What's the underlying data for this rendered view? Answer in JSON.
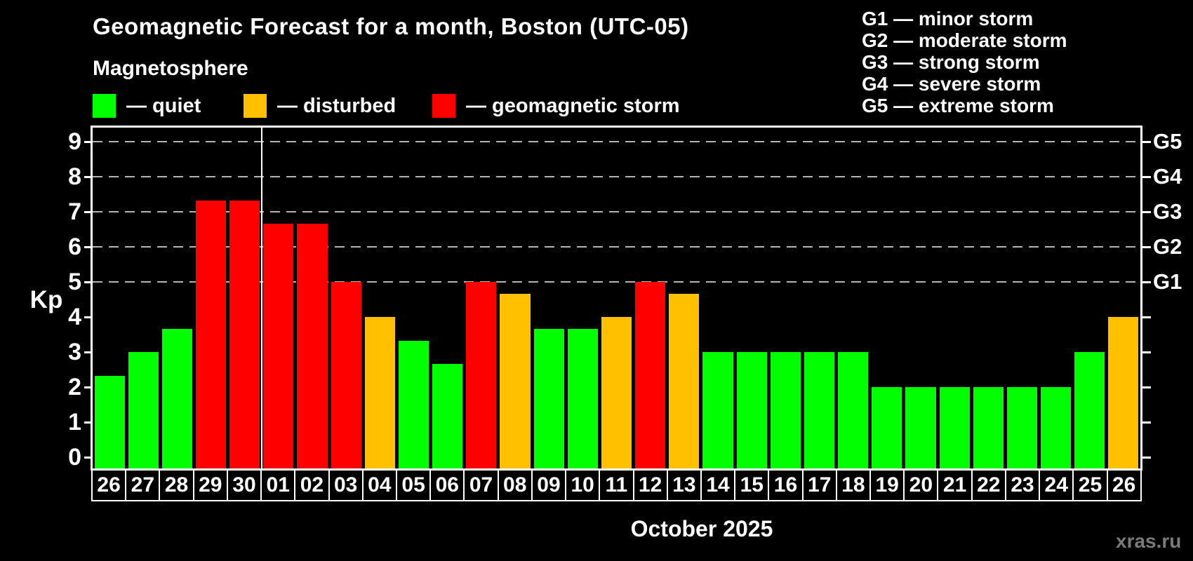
{
  "title": "Geomagnetic Forecast for a month, Boston (UTC-05)",
  "subtitle": "Magnetosphere",
  "legend": {
    "items": [
      {
        "id": "quiet",
        "label": "— quiet",
        "color": "#00ff00"
      },
      {
        "id": "disturbed",
        "label": "— disturbed",
        "color": "#ffc000"
      },
      {
        "id": "storm",
        "label": "— geomagnetic storm",
        "color": "#ff0000"
      }
    ]
  },
  "storm_scale_legend": {
    "items": [
      "G1 — minor storm",
      "G2 — moderate storm",
      "G3 — strong storm",
      "G4 — severe storm",
      "G5 — extreme storm"
    ]
  },
  "chart_data": {
    "type": "bar",
    "title": "Geomagnetic Forecast for a month, Boston (UTC-05)",
    "xlabel": "October 2025",
    "ylabel": "Kp",
    "ylim": [
      0,
      9.4
    ],
    "yticks": [
      0,
      1,
      2,
      3,
      4,
      5,
      6,
      7,
      8,
      9
    ],
    "gridlines_at_kp": [
      5,
      6,
      7,
      8,
      9
    ],
    "grid": "horizontal dashed lines only at Kp 5-9",
    "legend_position": "top-left",
    "right_axis": [
      {
        "kp": 5,
        "label": "G1"
      },
      {
        "kp": 6,
        "label": "G2"
      },
      {
        "kp": 7,
        "label": "G3"
      },
      {
        "kp": 8,
        "label": "G4"
      },
      {
        "kp": 9,
        "label": "G5"
      }
    ],
    "month_separator_after_index": 4,
    "bars": [
      {
        "day": "26",
        "kp": 2.33,
        "status": "quiet"
      },
      {
        "day": "27",
        "kp": 3.0,
        "status": "quiet"
      },
      {
        "day": "28",
        "kp": 3.67,
        "status": "quiet"
      },
      {
        "day": "29",
        "kp": 7.33,
        "status": "storm"
      },
      {
        "day": "30",
        "kp": 7.33,
        "status": "storm"
      },
      {
        "day": "01",
        "kp": 6.67,
        "status": "storm"
      },
      {
        "day": "02",
        "kp": 6.67,
        "status": "storm"
      },
      {
        "day": "03",
        "kp": 5.0,
        "status": "storm"
      },
      {
        "day": "04",
        "kp": 4.0,
        "status": "disturbed"
      },
      {
        "day": "05",
        "kp": 3.33,
        "status": "quiet"
      },
      {
        "day": "06",
        "kp": 2.67,
        "status": "quiet"
      },
      {
        "day": "07",
        "kp": 5.0,
        "status": "storm"
      },
      {
        "day": "08",
        "kp": 4.67,
        "status": "disturbed"
      },
      {
        "day": "09",
        "kp": 3.67,
        "status": "quiet"
      },
      {
        "day": "10",
        "kp": 3.67,
        "status": "quiet"
      },
      {
        "day": "11",
        "kp": 4.0,
        "status": "disturbed"
      },
      {
        "day": "12",
        "kp": 5.0,
        "status": "storm"
      },
      {
        "day": "13",
        "kp": 4.67,
        "status": "disturbed"
      },
      {
        "day": "14",
        "kp": 3.0,
        "status": "quiet"
      },
      {
        "day": "15",
        "kp": 3.0,
        "status": "quiet"
      },
      {
        "day": "16",
        "kp": 3.0,
        "status": "quiet"
      },
      {
        "day": "17",
        "kp": 3.0,
        "status": "quiet"
      },
      {
        "day": "18",
        "kp": 3.0,
        "status": "quiet"
      },
      {
        "day": "19",
        "kp": 2.0,
        "status": "quiet"
      },
      {
        "day": "20",
        "kp": 2.0,
        "status": "quiet"
      },
      {
        "day": "21",
        "kp": 2.0,
        "status": "quiet"
      },
      {
        "day": "22",
        "kp": 2.0,
        "status": "quiet"
      },
      {
        "day": "23",
        "kp": 2.0,
        "status": "quiet"
      },
      {
        "day": "24",
        "kp": 2.0,
        "status": "quiet"
      },
      {
        "day": "25",
        "kp": 3.0,
        "status": "quiet"
      },
      {
        "day": "26",
        "kp": 4.0,
        "status": "disturbed"
      }
    ]
  },
  "footer": {
    "watermark": "xras.ru"
  },
  "colors": {
    "background": "#000000",
    "text": "#ffffff",
    "axis": "#ffffff",
    "grid": "#b4b4b4",
    "watermark": "#7a7a7a",
    "quiet": "#00ff00",
    "disturbed": "#ffc000",
    "storm": "#ff0000"
  }
}
